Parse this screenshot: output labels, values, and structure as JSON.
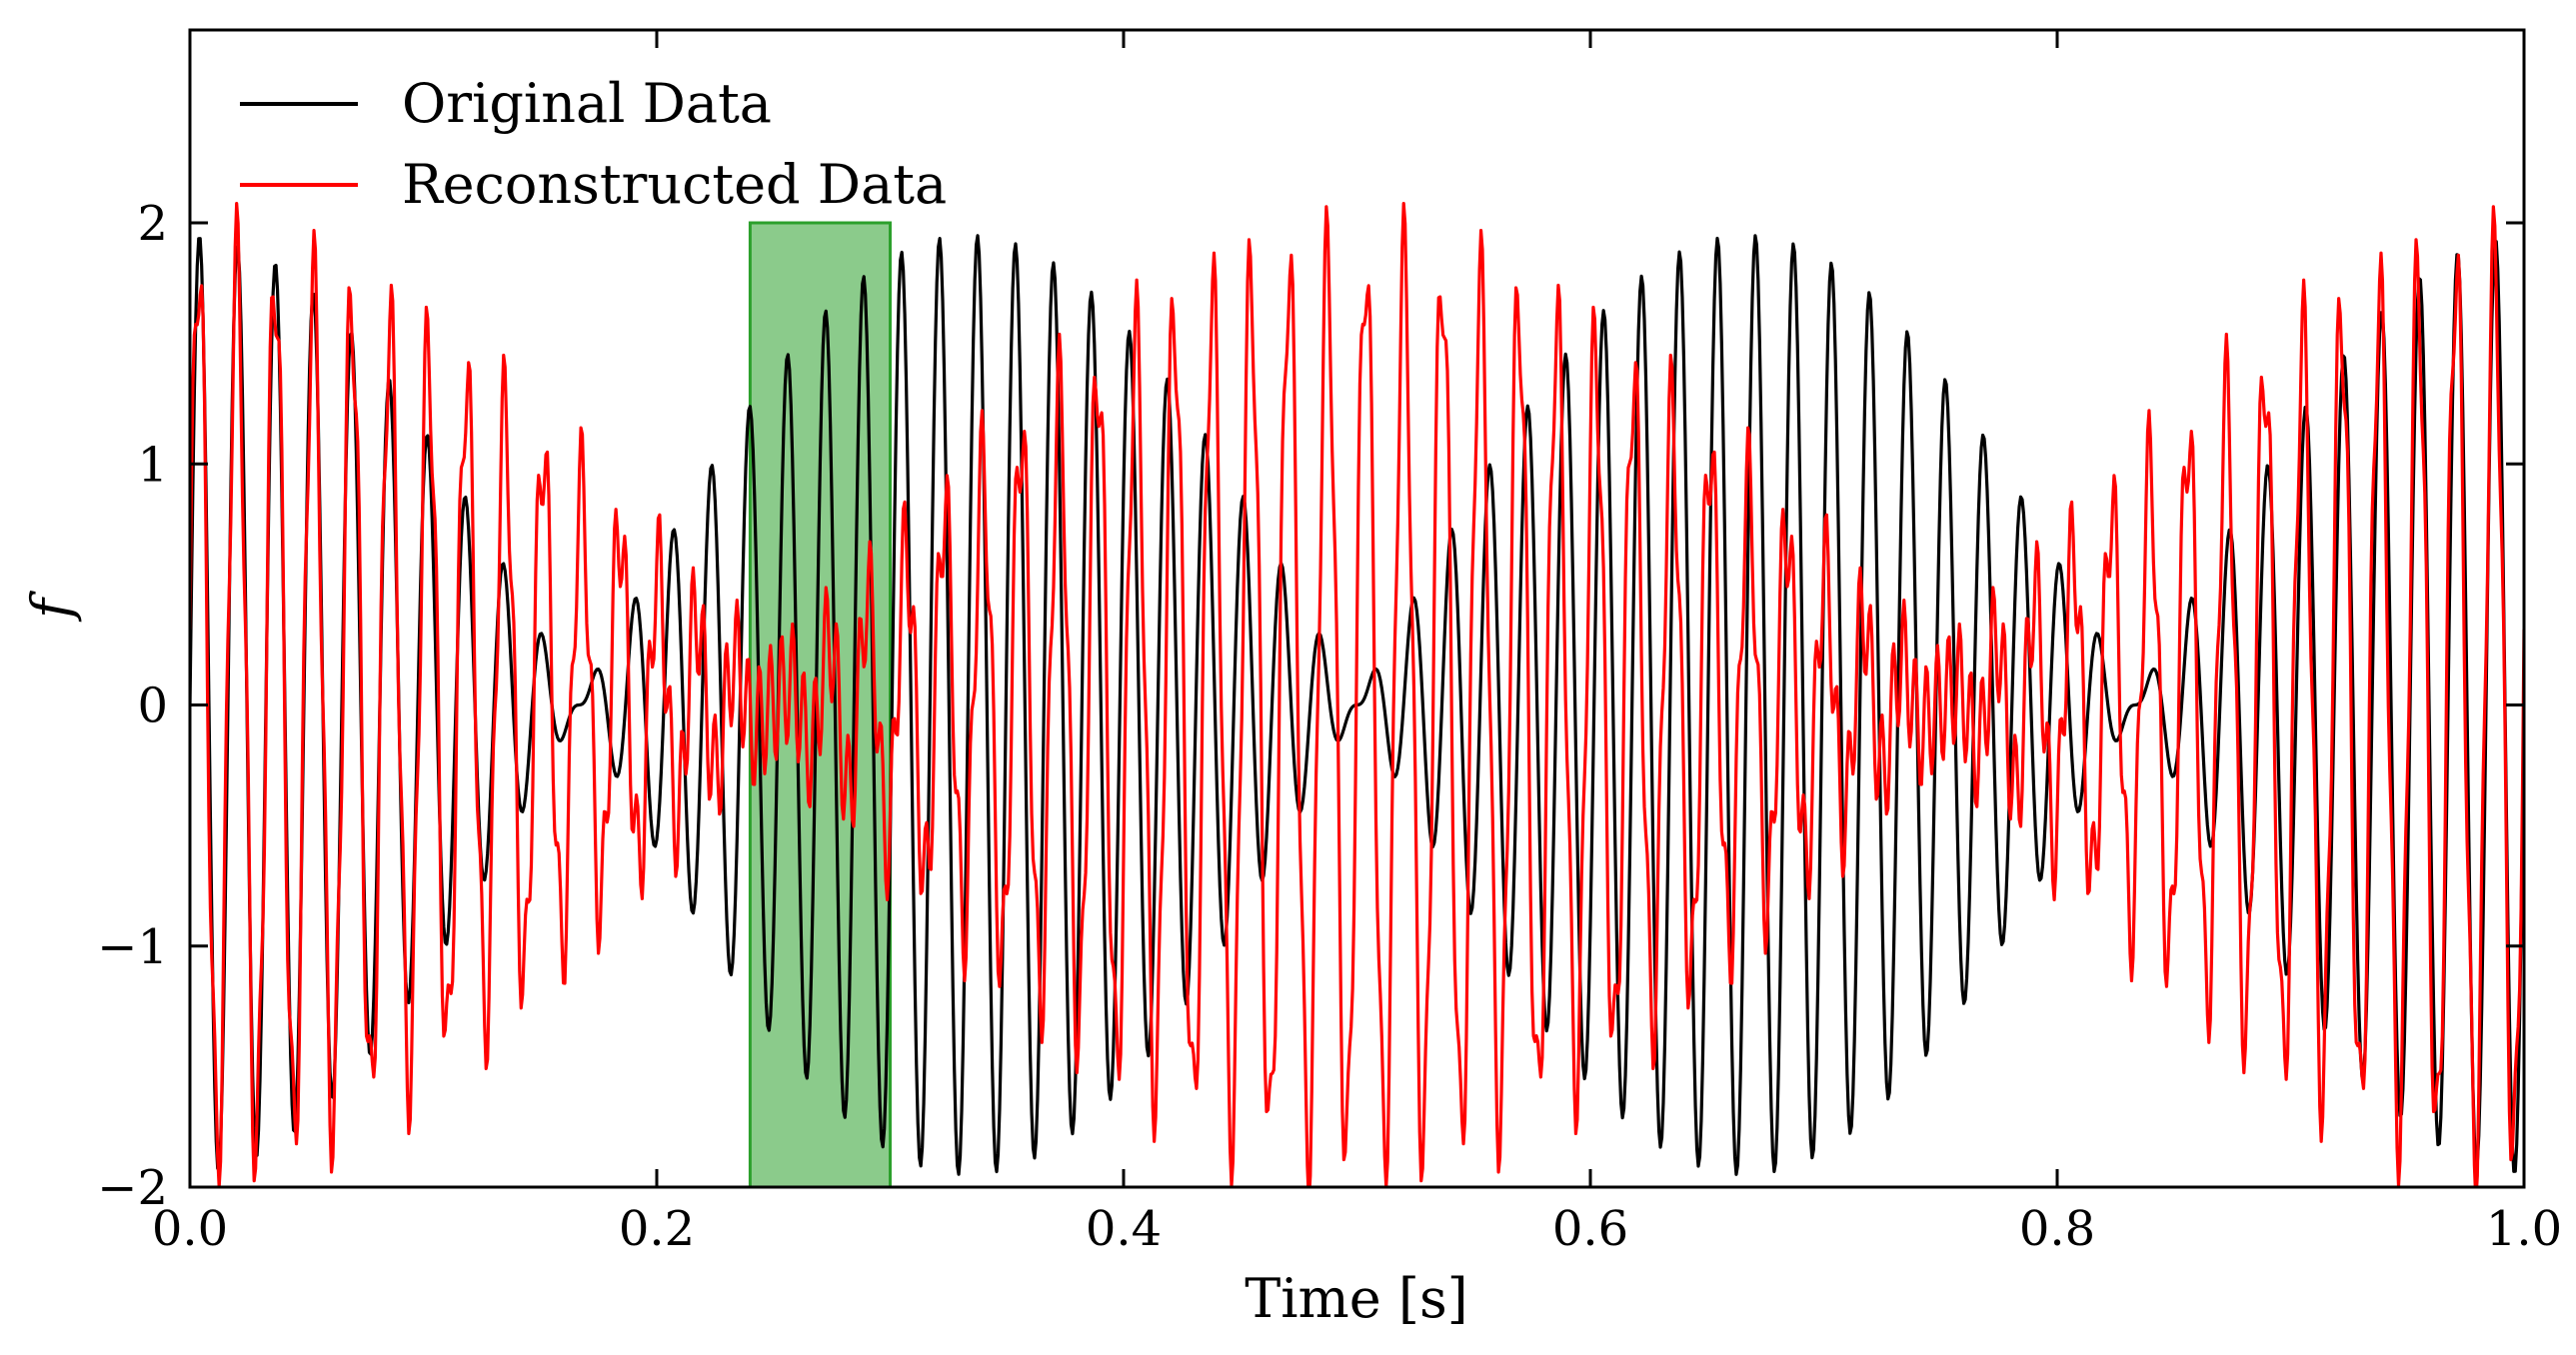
{
  "chart_data": {
    "type": "line",
    "title": "",
    "xlabel": "Time [s]",
    "ylabel": "f",
    "xlim": [
      0.0,
      1.0
    ],
    "ylim": [
      -2,
      2.8
    ],
    "xticks": [
      0.0,
      0.2,
      0.4,
      0.6,
      0.8,
      1.0
    ],
    "xtick_labels": [
      "0.0",
      "0.2",
      "0.4",
      "0.6",
      "0.8",
      "1.0"
    ],
    "yticks": [
      -2,
      -1,
      0,
      1,
      2
    ],
    "ytick_labels": [
      "−2",
      "−1",
      "0",
      "1",
      "2"
    ],
    "legend_position": "top-left",
    "grid": false,
    "highlight_region": {
      "x_start": 0.24,
      "x_end": 0.3,
      "y_start": -2,
      "y_end": 2,
      "color": "#2ca02c"
    },
    "series": [
      {
        "name": "Original Data",
        "color": "#000000",
        "model": {
          "components": [
            {
              "amplitude": 1.0,
              "frequency_hz": 60
            },
            {
              "amplitude": 0.95,
              "frequency_hz": 63
            }
          ],
          "samples": 1600
        }
      },
      {
        "name": "Reconstructed Data",
        "color": "#ff0000",
        "model": {
          "components": [
            {
              "amplitude": 0.95,
              "frequency_hz": 60
            },
            {
              "amplitude": 0.9,
              "frequency_hz": 62
            },
            {
              "amplitude": 0.25,
              "frequency_hz": 210
            }
          ],
          "samples": 1600
        }
      }
    ]
  }
}
